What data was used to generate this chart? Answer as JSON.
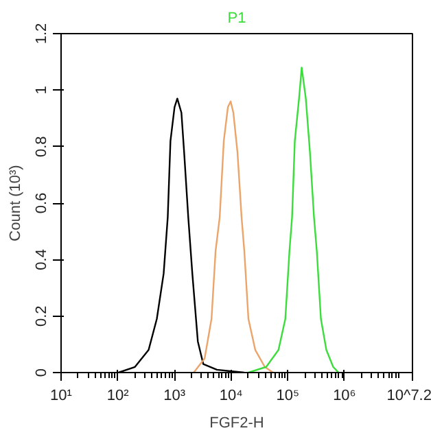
{
  "chart_data": {
    "type": "line",
    "xlabel": "FGF2-H",
    "ylabel": "Count (10³)",
    "log": "x",
    "grid": false,
    "xlim": [
      10,
      15848932
    ],
    "ylim": [
      0,
      1.2
    ],
    "xticks": [
      {
        "value": 10,
        "label": "10¹"
      },
      {
        "value": 100,
        "label": "10²"
      },
      {
        "value": 1000,
        "label": "10³"
      },
      {
        "value": 10000,
        "label": "10⁴"
      },
      {
        "value": 100000,
        "label": "10⁵"
      },
      {
        "value": 1000000,
        "label": "10⁶"
      },
      {
        "value": 15848932,
        "label": "10^7.2"
      }
    ],
    "yticks": [
      0,
      0.2,
      0.4,
      0.6,
      0.8,
      1,
      1.2
    ],
    "series": [
      {
        "color": "#000000",
        "x": [
          103,
          201,
          350,
          489,
          645,
          762,
          851,
          1005,
          1124,
          1328,
          1483,
          1754,
          2070,
          2588,
          3230,
          5620,
          9820,
          17100
        ],
        "values": [
          0,
          0.02,
          0.08,
          0.19,
          0.35,
          0.55,
          0.82,
          0.94,
          0.97,
          0.92,
          0.78,
          0.55,
          0.35,
          0.11,
          0.03,
          0.01,
          0.005,
          0
        ]
      },
      {
        "color": "#eba46a",
        "x": [
          2190,
          3410,
          4510,
          5320,
          6290,
          7430,
          8780,
          9820,
          10960,
          12950,
          15300,
          17100,
          20200,
          26700,
          39300,
          54900
        ],
        "values": [
          0,
          0.05,
          0.19,
          0.43,
          0.55,
          0.82,
          0.94,
          0.96,
          0.92,
          0.78,
          0.55,
          0.43,
          0.19,
          0.08,
          0.02,
          0
        ]
      },
      {
        "name": "P1",
        "color": "#3cdc3c",
        "x": [
          20200,
          41600,
          68500,
          90500,
          107000,
          119000,
          133000,
          158000,
          176000,
          208000,
          246000,
          290000,
          325000,
          384000,
          479000,
          632000,
          789000
        ],
        "values": [
          0,
          0.02,
          0.08,
          0.19,
          0.43,
          0.55,
          0.82,
          0.97,
          1.08,
          0.97,
          0.78,
          0.55,
          0.43,
          0.19,
          0.08,
          0.02,
          0
        ]
      }
    ]
  }
}
